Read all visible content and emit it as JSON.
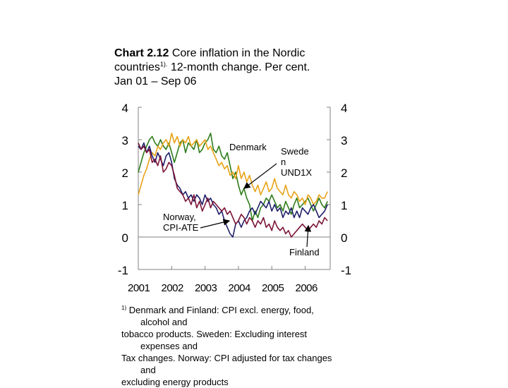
{
  "title": {
    "bold": "Chart 2.12",
    "line1_rest": " Core inflation in the Nordic",
    "line2_a": "countries",
    "line2_sup": "1).",
    "line2_b": " 12-month change. Per cent.",
    "line3": "Jan 01 – Sep 06"
  },
  "footnote": {
    "marker": "1)",
    "l1": " Denmark and Finland: CPI excl. energy, food,",
    "l2": "alcohol and",
    "l3": "tobacco products. Sweden: Excluding interest",
    "l4": "expenses and",
    "l5": "Tax changes. Norway: CPI adjusted for tax changes",
    "l6": "and",
    "l7": "excluding energy products"
  },
  "colors": {
    "denmark": "#2e7d1a",
    "sweden": "#e8a317",
    "norway": "#1f1f6b",
    "finland": "#7b1436",
    "axis": "#808080"
  },
  "chart_data": {
    "type": "line",
    "title": "Core inflation in the Nordic countries. 12-month change. Per cent.",
    "xlabel": "",
    "ylabel": "Per cent",
    "ylim": [
      -1,
      4
    ],
    "yticks_left": [
      "4",
      "3",
      "2",
      "1",
      "0",
      "-1"
    ],
    "yticks_right": [
      "4",
      "3",
      "2",
      "1",
      "0",
      "-1"
    ],
    "x_tick_labels": [
      "2001",
      "2002",
      "2003",
      "2004",
      "2005",
      "2006"
    ],
    "x_start": 2001.0,
    "x_end": 2006.75,
    "annotations": {
      "denmark": "Denmark",
      "sweden": [
        "Swede",
        "n",
        "UND1X"
      ],
      "norway": [
        "Norway,",
        "CPI-ATE"
      ],
      "finland": "Finland"
    },
    "series": [
      {
        "name": "Denmark",
        "color_key": "denmark",
        "values": [
          2.0,
          2.3,
          2.6,
          2.8,
          3.0,
          3.1,
          2.9,
          2.8,
          3.0,
          2.8,
          2.7,
          2.9,
          2.6,
          2.3,
          2.6,
          2.9,
          3.0,
          2.6,
          2.9,
          2.8,
          2.7,
          3.0,
          2.6,
          2.7,
          2.9,
          3.0,
          3.2,
          2.7,
          2.6,
          2.8,
          2.5,
          2.4,
          2.6,
          2.2,
          1.8,
          2.0,
          1.6,
          1.3,
          1.5,
          1.2,
          1.0,
          0.5,
          0.8,
          0.6,
          0.9,
          1.0,
          1.2,
          1.1,
          1.3,
          1.1,
          0.9,
          1.0,
          0.8,
          1.1,
          0.9,
          0.7,
          1.0,
          1.2,
          0.9,
          1.0,
          1.1,
          1.2,
          1.0,
          0.8,
          1.0,
          1.2,
          1.0,
          0.9,
          1.1
        ]
      },
      {
        "name": "Sweden",
        "color_key": "sweden",
        "values": [
          1.3,
          1.6,
          1.9,
          2.1,
          2.4,
          2.6,
          2.5,
          2.8,
          2.7,
          2.9,
          3.0,
          2.8,
          3.2,
          2.9,
          3.1,
          2.8,
          3.0,
          2.9,
          3.1,
          2.8,
          2.9,
          3.0,
          2.8,
          2.9,
          3.0,
          2.7,
          2.8,
          2.6,
          2.4,
          2.2,
          2.3,
          2.1,
          2.2,
          1.9,
          2.0,
          1.8,
          2.2,
          1.8,
          2.0,
          1.7,
          1.9,
          1.6,
          1.4,
          1.6,
          1.3,
          1.5,
          1.7,
          1.4,
          1.5,
          1.8,
          1.5,
          1.4,
          1.3,
          1.6,
          1.3,
          1.2,
          1.4,
          1.3,
          1.1,
          1.2,
          1.0,
          1.3,
          1.2,
          1.0,
          1.1,
          1.3,
          1.2,
          1.2,
          1.4
        ]
      },
      {
        "name": "Norway, CPI-ATE",
        "color_key": "norway",
        "values": [
          2.8,
          2.7,
          2.9,
          2.6,
          2.8,
          2.5,
          2.3,
          2.6,
          2.4,
          2.2,
          2.5,
          2.6,
          2.3,
          1.8,
          1.6,
          1.5,
          1.3,
          1.4,
          1.2,
          1.3,
          1.1,
          1.3,
          1.2,
          1.0,
          1.3,
          1.1,
          1.2,
          1.0,
          0.9,
          0.7,
          0.8,
          0.5,
          0.3,
          0.1,
          0.0,
          0.4,
          0.5,
          0.3,
          0.5,
          0.6,
          0.8,
          0.9,
          0.7,
          0.9,
          1.1,
          1.0,
          0.9,
          1.1,
          0.8,
          1.0,
          0.8,
          0.9,
          0.6,
          0.8,
          0.7,
          0.9,
          0.6,
          0.8,
          0.6,
          0.9,
          0.8,
          0.7,
          0.9,
          1.0,
          0.8,
          0.6,
          0.7,
          0.8,
          1.0
        ]
      },
      {
        "name": "Finland",
        "color_key": "finland",
        "values": [
          2.9,
          2.7,
          2.8,
          2.6,
          2.7,
          2.3,
          2.4,
          2.2,
          2.5,
          2.0,
          2.1,
          2.3,
          2.2,
          1.9,
          1.5,
          1.4,
          1.3,
          1.1,
          1.2,
          1.0,
          1.3,
          0.9,
          1.1,
          0.8,
          1.0,
          1.2,
          0.9,
          1.1,
          1.0,
          0.9,
          0.8,
          0.9,
          0.7,
          0.8,
          0.6,
          0.4,
          0.5,
          0.7,
          0.6,
          0.4,
          0.6,
          0.5,
          0.3,
          0.5,
          0.4,
          0.6,
          0.3,
          0.4,
          0.2,
          0.5,
          0.3,
          0.2,
          0.3,
          0.1,
          0.2,
          0.0,
          0.1,
          0.2,
          0.3,
          0.4,
          0.3,
          0.2,
          0.3,
          0.4,
          0.3,
          0.5,
          0.4,
          0.6,
          0.5
        ]
      }
    ]
  }
}
